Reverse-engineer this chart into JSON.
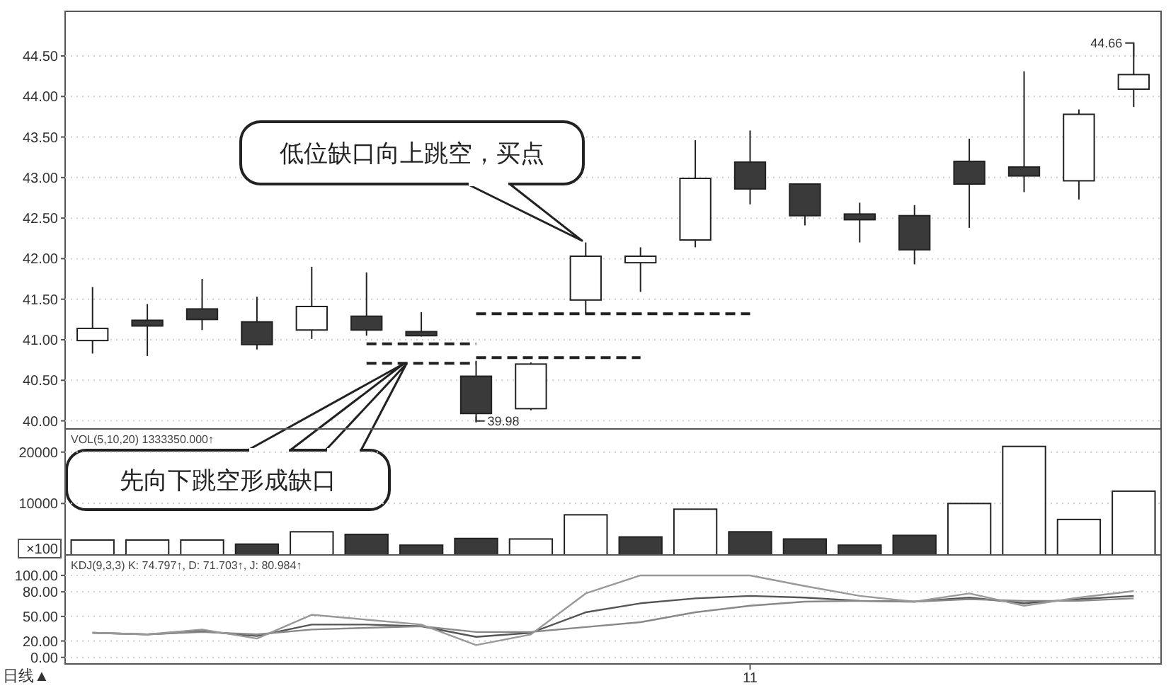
{
  "chart_data": [
    {
      "type": "candlestick",
      "categories": [
        null,
        null,
        null,
        null,
        null,
        null,
        null,
        null,
        null,
        null,
        null,
        null,
        null,
        null,
        null,
        null,
        null,
        null,
        null,
        null
      ],
      "ohlc": [
        [
          40.99,
          41.65,
          40.83,
          41.14
        ],
        [
          41.24,
          41.44,
          40.8,
          41.17
        ],
        [
          41.38,
          41.75,
          41.12,
          41.25
        ],
        [
          41.22,
          41.53,
          40.88,
          40.94
        ],
        [
          41.12,
          41.9,
          41.01,
          41.41
        ],
        [
          41.29,
          41.83,
          41.05,
          41.12
        ],
        [
          41.1,
          41.34,
          41.04,
          41.05
        ],
        [
          40.55,
          40.74,
          39.98,
          40.09
        ],
        [
          40.15,
          40.72,
          40.13,
          40.7
        ],
        [
          41.49,
          42.2,
          41.32,
          42.03
        ],
        [
          41.95,
          42.14,
          41.59,
          42.03
        ],
        [
          42.23,
          43.46,
          42.14,
          42.99
        ],
        [
          43.19,
          43.58,
          42.67,
          42.86
        ],
        [
          42.92,
          42.92,
          42.41,
          42.53
        ],
        [
          42.55,
          42.69,
          42.2,
          42.48
        ],
        [
          42.53,
          42.66,
          41.93,
          42.11
        ],
        [
          43.2,
          43.48,
          42.38,
          42.92
        ],
        [
          43.13,
          44.31,
          42.82,
          43.02
        ],
        [
          42.96,
          43.84,
          42.73,
          43.78
        ],
        [
          44.09,
          44.66,
          43.87,
          44.27
        ]
      ],
      "colors": [
        "#ffffff",
        "#3a3a3a",
        "#3a3a3a",
        "#3a3a3a",
        "#ffffff",
        "#3a3a3a",
        "#3a3a3a",
        "#3a3a3a",
        "#ffffff",
        "#ffffff",
        "#ffffff",
        "#ffffff",
        "#3a3a3a",
        "#3a3a3a",
        "#3a3a3a",
        "#3a3a3a",
        "#3a3a3a",
        "#3a3a3a",
        "#ffffff",
        "#ffffff"
      ],
      "series": [
        {
          "type": "line",
          "line_style": "dashed",
          "color": "#222222",
          "values": [
            null,
            null,
            null,
            null,
            null,
            40.95,
            40.95,
            40.95,
            null,
            null,
            null,
            null,
            null,
            null,
            null,
            null,
            null,
            null,
            null,
            null
          ]
        },
        {
          "type": "line",
          "line_style": "dashed",
          "color": "#222222",
          "values": [
            null,
            null,
            null,
            null,
            null,
            40.71,
            40.71,
            40.71,
            null,
            null,
            null,
            null,
            null,
            null,
            null,
            null,
            null,
            null,
            null,
            null
          ]
        },
        {
          "type": "line",
          "line_style": "dashed",
          "color": "#222222",
          "values": [
            null,
            null,
            null,
            null,
            null,
            null,
            null,
            41.32,
            41.32,
            41.32,
            41.32,
            41.32,
            41.32,
            null,
            null,
            null,
            null,
            null,
            null,
            null
          ]
        },
        {
          "type": "line",
          "line_style": "dashed",
          "color": "#222222",
          "values": [
            null,
            null,
            null,
            null,
            null,
            null,
            null,
            40.78,
            40.78,
            40.78,
            40.78,
            null,
            null,
            null,
            null,
            null,
            null,
            null,
            null,
            null
          ]
        }
      ],
      "ylim": [
        39.9,
        45.05
      ],
      "yticks": [
        {
          "value": 40,
          "label": "40.00"
        },
        {
          "value": 40.5,
          "label": "40.50"
        },
        {
          "value": 41,
          "label": "41.00"
        },
        {
          "value": 41.5,
          "label": "41.50"
        },
        {
          "value": 42,
          "label": "42.00"
        },
        {
          "value": 42.5,
          "label": "42.50"
        },
        {
          "value": 43,
          "label": "43.00"
        },
        {
          "value": 43.5,
          "label": "43.50"
        },
        {
          "value": 44,
          "label": "44.00"
        },
        {
          "value": 44.5,
          "label": "44.50"
        }
      ],
      "grid": "y",
      "tick_labels": "y",
      "annotations": [
        "低位缺口向上跳空，买点",
        "先向下跳空形成缺口",
        "39.98",
        "44.66"
      ]
    },
    {
      "type": "bar",
      "subtitle": "VOL(5,10,20) 1333350.000↑",
      "ylabel": "×100",
      "categories": [
        null,
        null,
        null,
        null,
        null,
        null,
        null,
        null,
        null,
        null,
        null,
        null,
        null,
        null,
        null,
        null,
        null,
        null,
        null,
        null
      ],
      "values": [
        2900,
        2900,
        2900,
        2100,
        4500,
        4000,
        1900,
        3200,
        3100,
        7800,
        3500,
        8900,
        4500,
        3100,
        1900,
        3800,
        10000,
        21100,
        6900,
        12400
      ],
      "colors": [
        "#ffffff",
        "#ffffff",
        "#ffffff",
        "#3a3a3a",
        "#ffffff",
        "#3a3a3a",
        "#3a3a3a",
        "#3a3a3a",
        "#ffffff",
        "#ffffff",
        "#3a3a3a",
        "#ffffff",
        "#3a3a3a",
        "#3a3a3a",
        "#3a3a3a",
        "#3a3a3a",
        "#ffffff",
        "#ffffff",
        "#ffffff",
        "#ffffff"
      ],
      "ylim": [
        0,
        24500
      ],
      "yticks": [
        10000,
        20000
      ],
      "grid": "y",
      "tick_labels": "y"
    },
    {
      "type": "line",
      "subtitle": "KDJ(9,3,3) K: 74.797↑, D: 71.703↑, J: 80.984↑",
      "categories": [
        null,
        null,
        null,
        null,
        null,
        null,
        null,
        null,
        null,
        null,
        null,
        null,
        "11",
        null,
        null,
        null,
        null,
        null,
        null,
        null
      ],
      "series": [
        {
          "color": "#555555",
          "values": [
            30,
            28,
            32,
            26,
            40,
            40,
            38,
            25,
            30,
            55,
            66,
            72,
            75,
            73,
            69,
            68,
            73,
            66,
            71,
            75
          ]
        },
        {
          "color": "#888888",
          "values": [
            30,
            28,
            31,
            28,
            34,
            36,
            38,
            31,
            31,
            37,
            43,
            55,
            63,
            68,
            69,
            68,
            71,
            69,
            69,
            72
          ]
        },
        {
          "color": "#999999",
          "values": [
            30,
            28,
            34,
            23,
            52,
            46,
            40,
            15,
            28,
            78,
            100,
            100,
            100,
            87,
            75,
            68,
            78,
            63,
            73,
            81
          ]
        }
      ],
      "ylim": [
        -8,
        125
      ],
      "yticks": [
        {
          "value": 0,
          "label": "0.00"
        },
        {
          "value": 20,
          "label": "20.00"
        },
        {
          "value": 50,
          "label": "50.00"
        },
        {
          "value": 80,
          "label": "80.00"
        },
        {
          "value": 100,
          "label": "100.00"
        }
      ],
      "grid": "y",
      "annotations": [
        "日线▲"
      ]
    }
  ]
}
